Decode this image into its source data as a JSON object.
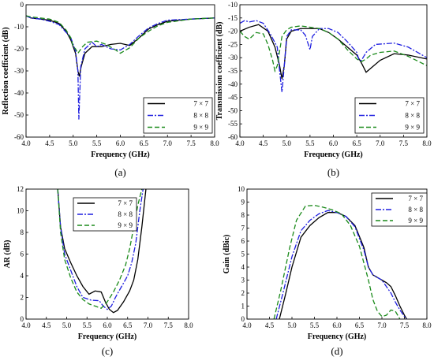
{
  "colors": {
    "s7x7": "#000000",
    "s8x8": "#1f1fe0",
    "s9x9": "#1a8a1a"
  },
  "chart_data": [
    {
      "id": "a",
      "type": "line",
      "caption": "(a)",
      "xlabel": "Frequency (GHz)",
      "ylabel": "Reflection coefficient (dB)",
      "xlim": [
        4.0,
        8.0
      ],
      "ylim": [
        -60,
        0
      ],
      "xticks": [
        "4.0",
        "4.5",
        "5.0",
        "5.5",
        "6.0",
        "6.5",
        "7.0",
        "7.5",
        "8.0"
      ],
      "yticks": [
        "0",
        "-10",
        "-20",
        "-30",
        "-40",
        "-50",
        "-60"
      ],
      "legend_position": "bottom-right",
      "series": [
        {
          "name": "7 × 7",
          "style": "solid",
          "color": "#000000",
          "x": [
            4.0,
            4.1,
            4.3,
            4.5,
            4.7,
            4.85,
            4.95,
            5.05,
            5.1,
            5.13,
            5.17,
            5.25,
            5.4,
            5.6,
            5.8,
            6.0,
            6.2,
            6.4,
            6.6,
            6.8,
            7.0,
            7.5,
            8.0
          ],
          "y": [
            -5,
            -6,
            -6.5,
            -7,
            -8.5,
            -12,
            -16,
            -22,
            -30,
            -32.5,
            -28,
            -22,
            -19,
            -19,
            -18,
            -17.5,
            -18.5,
            -15,
            -11,
            -9,
            -7.5,
            -6.5,
            -6
          ]
        },
        {
          "name": "8 × 8",
          "style": "dashdot",
          "color": "#1f1fe0",
          "x": [
            4.0,
            4.1,
            4.3,
            4.5,
            4.7,
            4.85,
            4.95,
            5.05,
            5.1,
            5.12,
            5.16,
            5.25,
            5.4,
            5.5,
            5.6,
            5.8,
            6.0,
            6.2,
            6.4,
            6.6,
            6.8,
            7.0,
            7.5,
            8.0
          ],
          "y": [
            -5,
            -6,
            -6.5,
            -7.5,
            -9,
            -12.5,
            -15,
            -21,
            -30,
            -52,
            -28,
            -20,
            -17,
            -19,
            -18,
            -20,
            -20.5,
            -18,
            -14,
            -10.5,
            -8.5,
            -7,
            -6.5,
            -6
          ]
        },
        {
          "name": "9 × 9",
          "style": "dashed",
          "color": "#1a8a1a",
          "x": [
            4.0,
            4.1,
            4.3,
            4.5,
            4.7,
            4.85,
            4.95,
            5.0,
            5.05,
            5.1,
            5.2,
            5.3,
            5.5,
            5.7,
            5.9,
            6.0,
            6.2,
            6.4,
            6.6,
            6.8,
            7.0,
            7.5,
            8.0
          ],
          "y": [
            -5,
            -5.5,
            -6,
            -6.5,
            -8,
            -11.5,
            -15,
            -19,
            -20,
            -22,
            -19,
            -17,
            -16.5,
            -18,
            -20.5,
            -22,
            -19.5,
            -15,
            -12,
            -9.5,
            -8,
            -6.5,
            -6
          ]
        }
      ]
    },
    {
      "id": "b",
      "type": "line",
      "caption": "(b)",
      "xlabel": "Frequency (GHz)",
      "ylabel": "Transmission coefficient (dB)",
      "xlim": [
        4.0,
        8.0
      ],
      "ylim": [
        -60,
        -10
      ],
      "xticks": [
        "4.0",
        "4.5",
        "5.0",
        "5.5",
        "6.0",
        "6.5",
        "7.0",
        "7.5",
        "8.0"
      ],
      "yticks": [
        "-10",
        "-15",
        "-20",
        "-25",
        "-30",
        "-35",
        "-40",
        "-45",
        "-50",
        "-55",
        "-60"
      ],
      "legend_position": "bottom-right",
      "series": [
        {
          "name": "7 × 7",
          "style": "solid",
          "color": "#000000",
          "x": [
            4.0,
            4.2,
            4.4,
            4.6,
            4.75,
            4.85,
            4.9,
            4.95,
            5.0,
            5.1,
            5.3,
            5.5,
            5.7,
            5.9,
            6.1,
            6.3,
            6.5,
            6.6,
            6.7,
            6.8,
            7.0,
            7.3,
            7.6,
            8.0
          ],
          "y": [
            -20,
            -18.5,
            -17.5,
            -20,
            -26,
            -33,
            -38,
            -33,
            -23,
            -20,
            -19,
            -19,
            -19,
            -20.5,
            -23,
            -26,
            -29,
            -32,
            -35.5,
            -34,
            -31,
            -28.5,
            -29,
            -30.5
          ]
        },
        {
          "name": "8 × 8",
          "style": "dashdot",
          "color": "#1f1fe0",
          "x": [
            4.0,
            4.1,
            4.2,
            4.35,
            4.5,
            4.65,
            4.8,
            4.85,
            4.9,
            4.95,
            5.0,
            5.1,
            5.3,
            5.4,
            5.5,
            5.55,
            5.7,
            5.9,
            6.1,
            6.3,
            6.5,
            6.55,
            6.6,
            6.7,
            6.9,
            7.3,
            7.6,
            8.0
          ],
          "y": [
            -17,
            -16,
            -16.5,
            -16,
            -17,
            -21,
            -26,
            -35,
            -43,
            -33,
            -22,
            -19.5,
            -19.5,
            -21.5,
            -27,
            -22,
            -19,
            -19,
            -20.5,
            -24,
            -28,
            -31,
            -31,
            -28,
            -25,
            -24.5,
            -26,
            -30
          ]
        },
        {
          "name": "9 × 9",
          "style": "dashed",
          "color": "#1a8a1a",
          "x": [
            4.0,
            4.1,
            4.2,
            4.35,
            4.5,
            4.6,
            4.7,
            4.75,
            4.8,
            4.9,
            5.0,
            5.1,
            5.3,
            5.5,
            5.7,
            5.9,
            6.1,
            6.3,
            6.5,
            6.6,
            6.7,
            6.8,
            7.0,
            7.3,
            7.6,
            8.0
          ],
          "y": [
            -20,
            -22,
            -23,
            -20.5,
            -21,
            -25,
            -31,
            -35,
            -33,
            -22,
            -19.5,
            -18.5,
            -18,
            -18.5,
            -19,
            -20.5,
            -23,
            -27,
            -30.5,
            -31.5,
            -30.5,
            -29,
            -28,
            -27.5,
            -29.5,
            -33
          ]
        }
      ]
    },
    {
      "id": "c",
      "type": "line",
      "caption": "(c)",
      "xlabel": "Frequency (GHz)",
      "ylabel": "AR (dB)",
      "xlim": [
        4.0,
        8.0
      ],
      "ylim": [
        0,
        12
      ],
      "xticks": [
        "4.0",
        "4.5",
        "5.0",
        "5.5",
        "6.0",
        "6.5",
        "7.0",
        "7.5",
        "8.0"
      ],
      "yticks": [
        "0",
        "2",
        "4",
        "6",
        "8",
        "10",
        "12"
      ],
      "legend_position": "top-right",
      "series": [
        {
          "name": "7 × 7",
          "style": "solid",
          "color": "#000000",
          "x": [
            4.78,
            4.85,
            4.95,
            5.1,
            5.25,
            5.4,
            5.55,
            5.7,
            5.85,
            5.95,
            6.05,
            6.15,
            6.25,
            6.4,
            6.55,
            6.65,
            6.75,
            6.85,
            6.95
          ],
          "y": [
            12,
            8.5,
            6.5,
            5.2,
            4,
            3,
            2.3,
            2.6,
            2.5,
            1.6,
            0.9,
            0.6,
            0.8,
            1.6,
            2.6,
            3.6,
            5.5,
            8.5,
            12
          ]
        },
        {
          "name": "8 × 8",
          "style": "dashdot",
          "color": "#1f1fe0",
          "x": [
            4.78,
            4.85,
            4.95,
            5.1,
            5.25,
            5.4,
            5.6,
            5.8,
            5.9,
            6.0,
            6.1,
            6.2,
            6.35,
            6.5,
            6.6,
            6.7,
            6.8,
            6.88
          ],
          "y": [
            12,
            8.5,
            6,
            4.5,
            3,
            2,
            1.75,
            1.7,
            1.2,
            0.9,
            1.2,
            2,
            3,
            4,
            5.2,
            7,
            10,
            12
          ]
        },
        {
          "name": "9 × 9",
          "style": "dashed",
          "color": "#1a8a1a",
          "x": [
            4.78,
            4.85,
            4.95,
            5.1,
            5.25,
            5.4,
            5.55,
            5.7,
            5.85,
            6.0,
            6.15,
            6.3,
            6.45,
            6.55,
            6.65,
            6.75,
            6.85
          ],
          "y": [
            12,
            8,
            5.5,
            3.8,
            2.5,
            1.8,
            1.4,
            1.2,
            1.0,
            1.6,
            2.5,
            3.6,
            5,
            6.5,
            8.5,
            10.5,
            12
          ]
        }
      ]
    },
    {
      "id": "d",
      "type": "line",
      "caption": "(d)",
      "xlabel": "Frequency (GHz)",
      "ylabel": "Gain (dBic)",
      "xlim": [
        4.0,
        8.0
      ],
      "ylim": [
        0,
        10
      ],
      "xticks": [
        "4.0",
        "4.5",
        "5.0",
        "5.5",
        "6.0",
        "6.5",
        "7.0",
        "7.5",
        "8.0"
      ],
      "yticks": [
        "0",
        "1",
        "2",
        "3",
        "4",
        "5",
        "6",
        "7",
        "8",
        "9",
        "10"
      ],
      "legend_position": "top-right",
      "series": [
        {
          "name": "7 × 7",
          "style": "solid",
          "color": "#000000",
          "x": [
            4.72,
            4.85,
            5.0,
            5.2,
            5.4,
            5.6,
            5.8,
            6.0,
            6.2,
            6.4,
            6.6,
            6.7,
            6.8,
            6.9,
            7.0,
            7.1,
            7.2,
            7.3,
            7.4,
            7.5,
            7.55
          ],
          "y": [
            0,
            1.8,
            4,
            6.3,
            7.2,
            7.8,
            8.2,
            8.2,
            7.9,
            7.2,
            5.5,
            4,
            3.4,
            3.2,
            3.0,
            2.8,
            2.5,
            1.8,
            1.0,
            0.3,
            0
          ]
        },
        {
          "name": "8 × 8",
          "style": "dashdot",
          "color": "#1f1fe0",
          "x": [
            4.65,
            4.8,
            5.0,
            5.2,
            5.4,
            5.6,
            5.8,
            6.0,
            6.2,
            6.4,
            6.6,
            6.7,
            6.8,
            6.9,
            7.0,
            7.1,
            7.2,
            7.3,
            7.4,
            7.5,
            7.55
          ],
          "y": [
            0,
            2,
            4.8,
            6.8,
            7.6,
            8.1,
            8.35,
            8.2,
            7.9,
            7.1,
            5.3,
            4,
            3.4,
            3.2,
            3.0,
            2.5,
            2.0,
            1.3,
            0.7,
            0.2,
            0
          ]
        },
        {
          "name": "9 × 9",
          "style": "dashed",
          "color": "#1a8a1a",
          "x": [
            4.6,
            4.75,
            4.95,
            5.1,
            5.3,
            5.5,
            5.7,
            5.9,
            6.1,
            6.3,
            6.5,
            6.6,
            6.7,
            6.8,
            6.9,
            7.0,
            7.1,
            7.2,
            7.3,
            7.4
          ],
          "y": [
            0,
            2.2,
            5.5,
            7.6,
            8.7,
            8.75,
            8.6,
            8.4,
            8.1,
            7.2,
            5.6,
            4.3,
            3.0,
            1.5,
            0.6,
            0.2,
            0.3,
            0.7,
            0.6,
            0
          ]
        }
      ]
    }
  ]
}
